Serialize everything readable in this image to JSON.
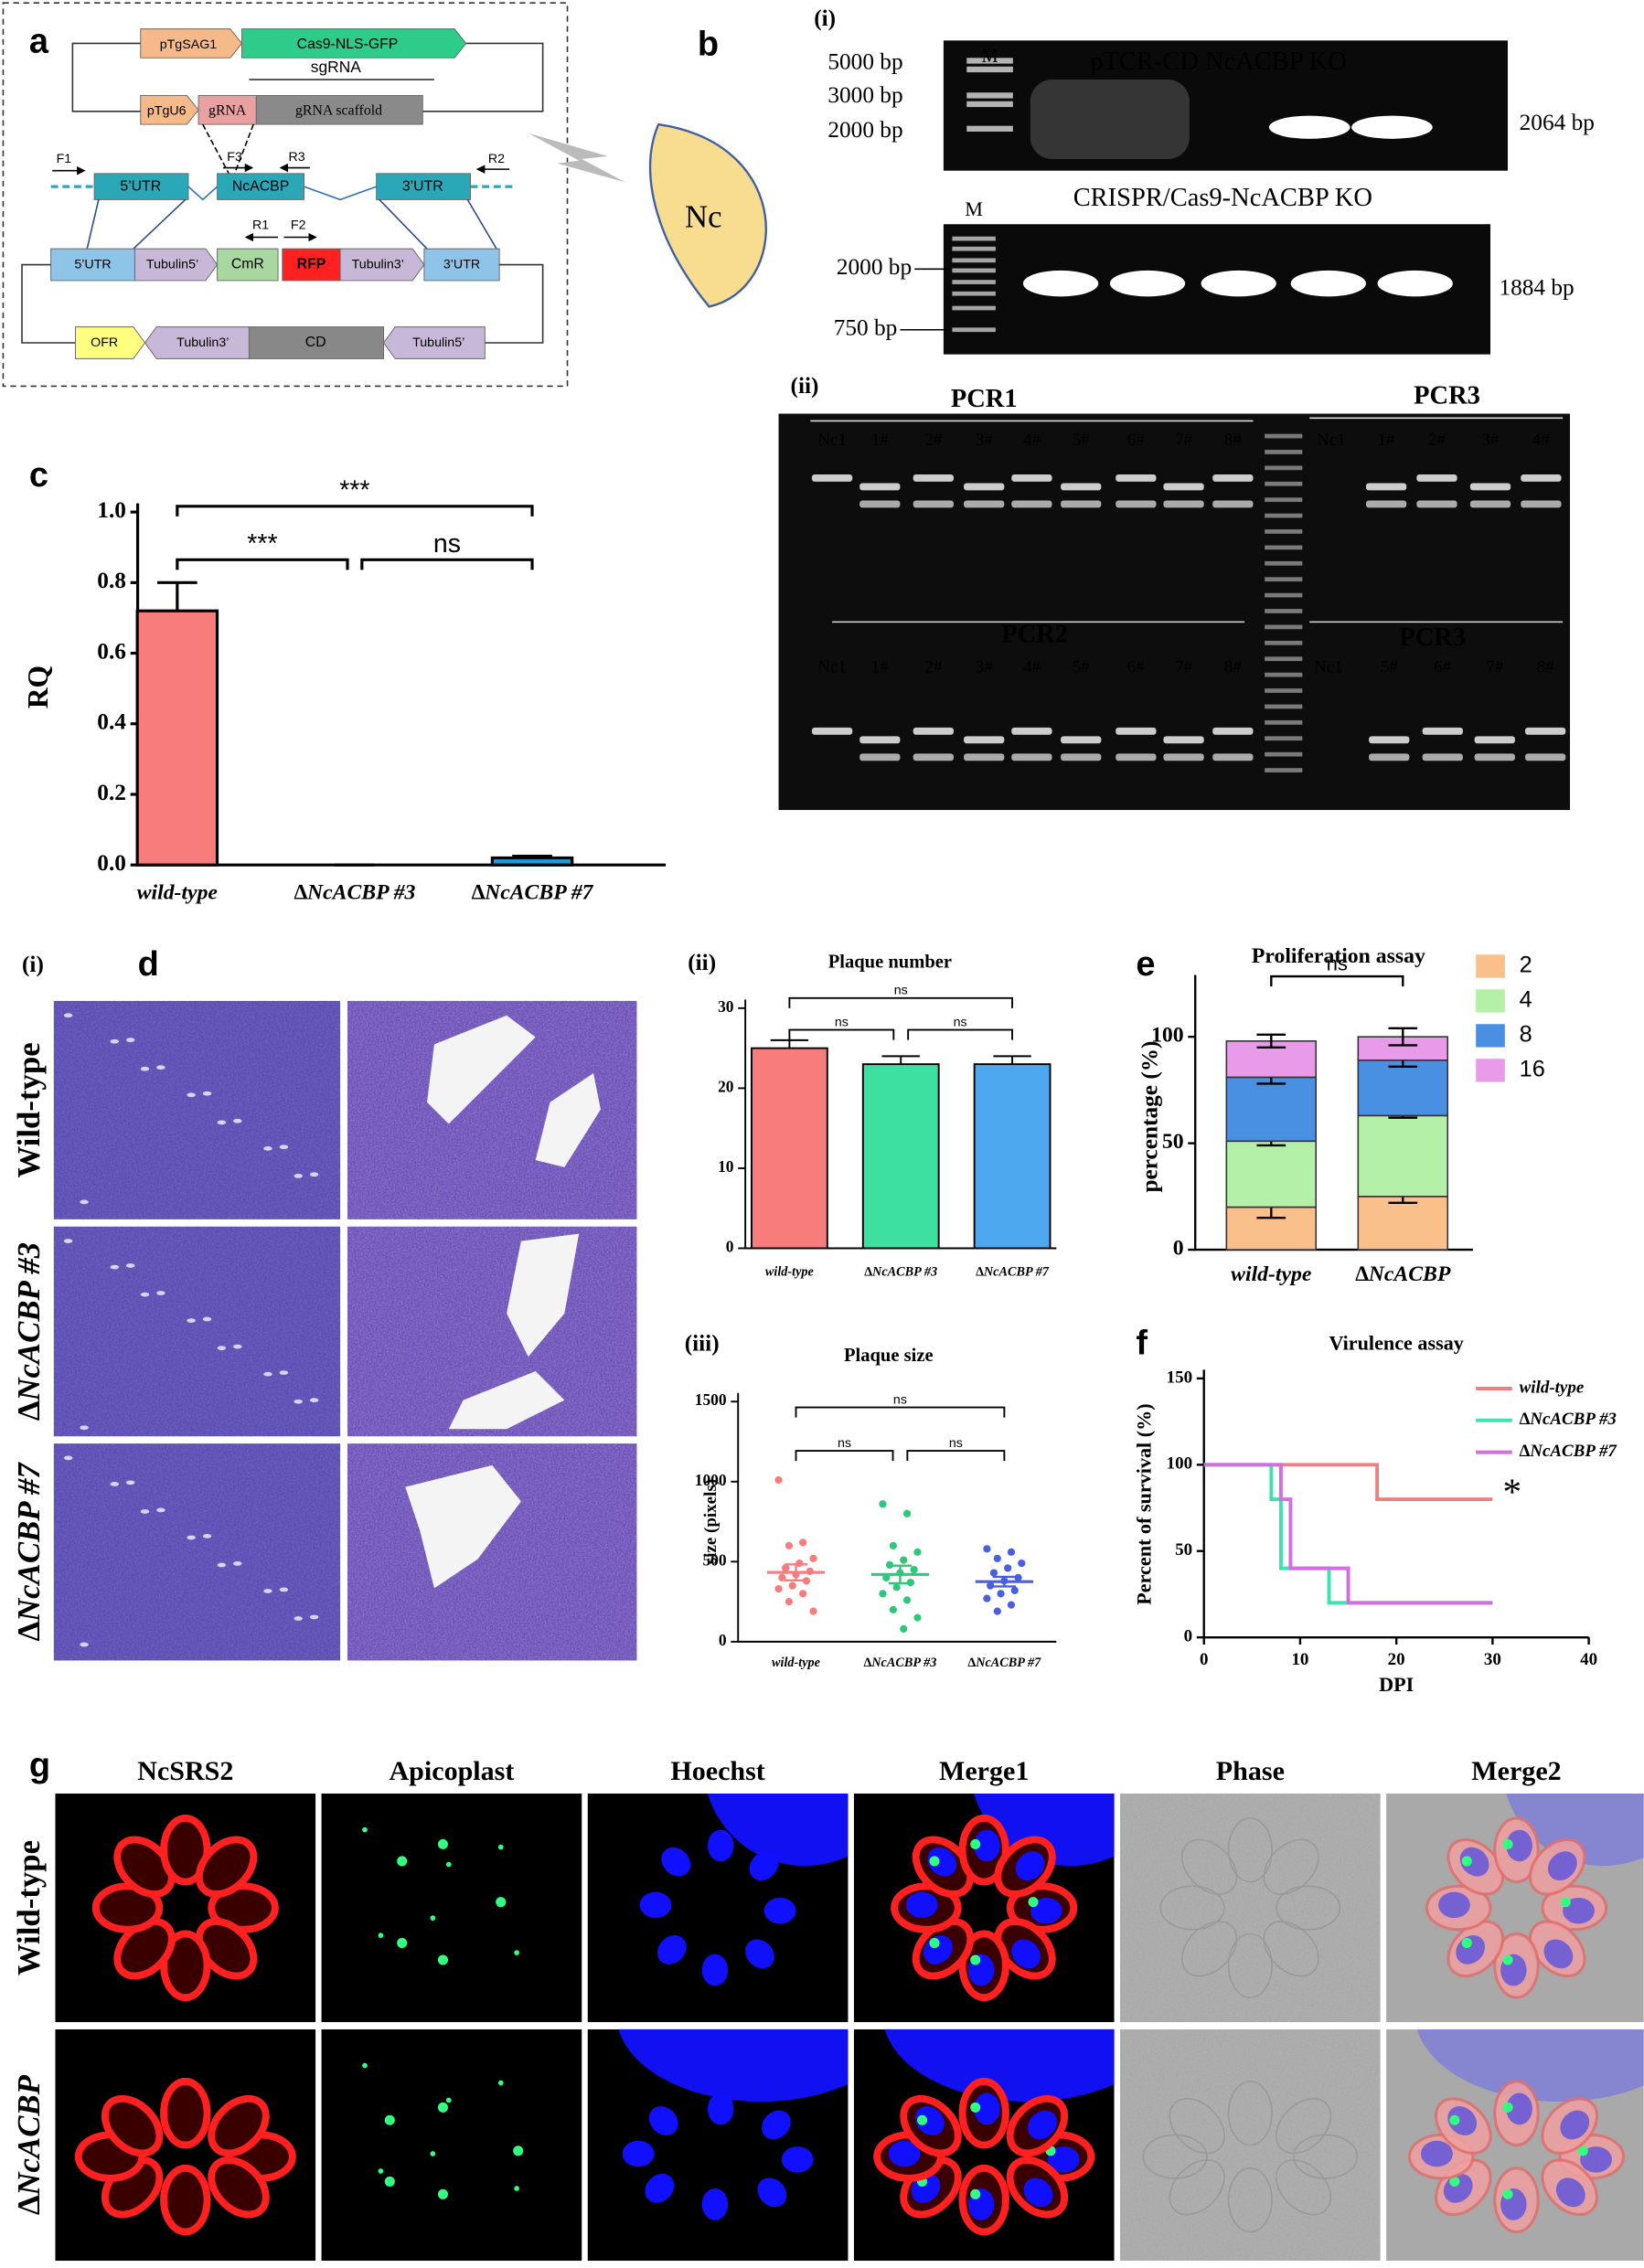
{
  "panel_a": {
    "label": "a",
    "plasmid1": [
      "pTgSAG1",
      "Cas9-NLS-GFP"
    ],
    "plasmid2": {
      "label": "sgRNA",
      "parts": [
        "pTgU6",
        "gRNA",
        "gRNA scaffold"
      ]
    },
    "locus": {
      "primers": [
        "F1",
        "F3",
        "R3",
        "R2"
      ],
      "parts": [
        "5’UTR",
        "NcACBP",
        "3’UTR"
      ]
    },
    "construct": {
      "primers": [
        "R1",
        "F2"
      ],
      "parts": [
        "5’UTR",
        "Tubulin5’",
        "CmR",
        "RFP",
        "Tubulin3’",
        "3’UTR"
      ]
    },
    "backbone": [
      "OFR",
      "Tubulin3’",
      "CD",
      "Tubulin5’"
    ],
    "parasite": "Nc"
  },
  "panel_b": {
    "label": "b",
    "part_i": "(i)",
    "gel1": {
      "marker": "M",
      "title": "pTCR-CD NcACBP KO",
      "ladder": [
        "5000 bp",
        "3000 bp",
        "2000 bp"
      ],
      "band": "2064 bp"
    },
    "gel2": {
      "marker": "M",
      "title": "CRISPR/Cas9-NcACBP KO",
      "ladder": [
        "2000 bp",
        "750 bp"
      ],
      "band": "1884 bp"
    },
    "part_ii": "(ii)",
    "gel3": {
      "top_left": {
        "title": "PCR1",
        "lanes": [
          "Nc1",
          "1#",
          "2#",
          "3#",
          "4#",
          "5#",
          "6#",
          "7#",
          "8#"
        ]
      },
      "top_right": {
        "title": "PCR3",
        "lanes": [
          "Nc1",
          "1#",
          "2#",
          "3#",
          "4#"
        ]
      },
      "bottom_left": {
        "title": "PCR2",
        "lanes": [
          "Nc1",
          "1#",
          "2#",
          "3#",
          "4#",
          "5#",
          "6#",
          "7#",
          "8#"
        ]
      },
      "bottom_right": {
        "title": "PCR3",
        "lanes": [
          "Nc1",
          "5#",
          "6#",
          "7#",
          "8#"
        ]
      }
    }
  },
  "panel_d": {
    "part_i": "(i)",
    "label": "d",
    "rows": [
      "Wild-type",
      "∆NcACBP #3",
      "∆NcACBP #7"
    ],
    "part_ii": "(ii)",
    "part_iii": "(iii)"
  },
  "panel_g": {
    "label": "g",
    "columns": [
      "NcSRS2",
      "Apicoplast",
      "Hoechst",
      "Merge1",
      "Phase",
      "Merge2"
    ],
    "rows": [
      "Wild-type",
      "∆NcACBP"
    ]
  },
  "chart_data": [
    {
      "panel_label": "c",
      "type": "bar",
      "y_label": "RQ",
      "categories": [
        "wild-type",
        "∆NcACBP #3",
        "∆NcACBP #7"
      ],
      "values": [
        0.72,
        0,
        0.02
      ],
      "errors": [
        0.08,
        0,
        0.005
      ],
      "colors": [
        "#f87c7c",
        "#f87c7c",
        "#1e9ad6"
      ],
      "ylim": [
        0,
        1
      ],
      "yticks": [
        {
          "value": 0,
          "label": "0.0"
        },
        0.2,
        0.4,
        0.6,
        0.8,
        {
          "value": 1,
          "label": "1.0"
        }
      ],
      "significance": [
        "***",
        "***",
        "ns"
      ]
    },
    {
      "type": "bar",
      "title": "Plaque number",
      "categories": [
        "wild-type",
        "∆NcACBP #3",
        "∆NcACBP #7"
      ],
      "values": [
        25,
        23,
        23
      ],
      "errors": [
        1,
        1,
        1
      ],
      "colors": [
        "#f87c7c",
        "#3ee0a0",
        "#4ea8f0"
      ],
      "ylim": [
        0,
        30
      ],
      "yticks": [
        0,
        10,
        20,
        30
      ],
      "significance": [
        "ns",
        "ns",
        "ns"
      ]
    },
    {
      "type": "strip",
      "title": "Plaque size",
      "y_label": "size (pixels)",
      "categories": [
        "wild-type",
        "∆NcACBP #3",
        "∆NcACBP #7"
      ],
      "points": [
        [
          1010,
          620,
          600,
          520,
          490,
          460,
          440,
          420,
          400,
          380,
          350,
          330,
          300,
          250,
          190
        ],
        [
          860,
          800,
          600,
          560,
          510,
          480,
          450,
          430,
          400,
          370,
          340,
          300,
          260,
          200,
          150,
          80
        ],
        [
          580,
          560,
          520,
          490,
          460,
          430,
          400,
          380,
          350,
          320,
          300,
          270,
          230,
          190
        ]
      ],
      "means": [
        433,
        420,
        375
      ],
      "errors": [
        50,
        55,
        30
      ],
      "colors": [
        "#f87c7c",
        "#2ec87a",
        "#4a5ee0"
      ],
      "ylim": [
        0,
        1500
      ],
      "yticks": [
        0,
        500,
        1000,
        1500
      ],
      "significance": [
        "ns",
        "ns",
        "ns"
      ]
    },
    {
      "panel_label": "e",
      "type": "stacked_bar",
      "title": "Proliferation assay",
      "y_label": "percentage (%)",
      "categories": [
        "wild-type",
        "∆NcACBP"
      ],
      "series": [
        {
          "name": "2",
          "color": "#f9c08c",
          "values": [
            20,
            25
          ],
          "errors": [
            5,
            3
          ]
        },
        {
          "name": "4",
          "color": "#b5f0a8",
          "values": [
            31,
            38
          ],
          "errors": [
            2,
            1
          ]
        },
        {
          "name": "8",
          "color": "#4a90e2",
          "values": [
            30,
            26
          ],
          "errors": [
            3,
            3
          ]
        },
        {
          "name": "16",
          "color": "#e79be8",
          "values": [
            17,
            11
          ],
          "errors": [
            3,
            4
          ]
        }
      ],
      "ylim": [
        0,
        125
      ],
      "yticks": [
        0,
        50,
        100
      ],
      "significance": [
        "ns"
      ],
      "legend": "upper right"
    },
    {
      "panel_label": "f",
      "type": "step",
      "title": "Virulence assay",
      "x_label": "DPI",
      "y_label": "Percent of survival (%)",
      "series": [
        {
          "name": "wild-type",
          "color": "#f08080",
          "x": [
            0,
            18,
            30
          ],
          "values": [
            100,
            80,
            80
          ]
        },
        {
          "name": "∆NcACBP #3",
          "color": "#40e0b0",
          "x": [
            0,
            7,
            8,
            13,
            30
          ],
          "values": [
            100,
            80,
            40,
            20,
            20
          ]
        },
        {
          "name": "∆NcACBP #7",
          "color": "#d070e0",
          "x": [
            0,
            8,
            9,
            15,
            30
          ],
          "values": [
            100,
            80,
            40,
            20,
            20
          ]
        }
      ],
      "xlim": [
        0,
        40
      ],
      "xticks": [
        0,
        10,
        20,
        30,
        40
      ],
      "ylim": [
        0,
        150
      ],
      "yticks": [
        0,
        50,
        100,
        150
      ],
      "annotation": "*",
      "legend": "upper right"
    }
  ]
}
